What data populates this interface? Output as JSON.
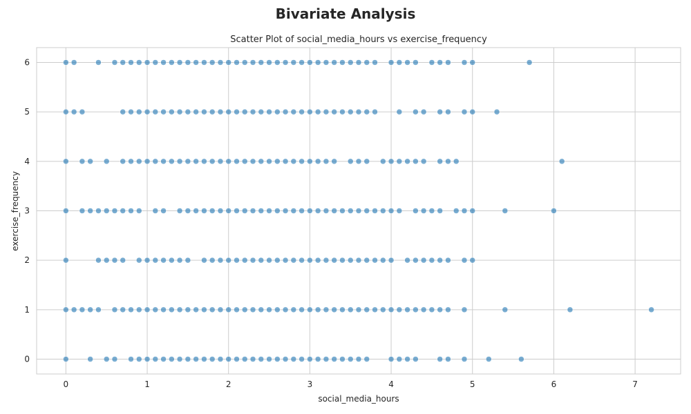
{
  "figure": {
    "suptitle": "Bivariate Analysis"
  },
  "chart_data": {
    "type": "scatter",
    "title": "Scatter Plot of social_media_hours vs exercise_frequency",
    "xlabel": "social_media_hours",
    "ylabel": "exercise_frequency",
    "xlim": [
      -0.36,
      7.56
    ],
    "ylim": [
      -0.3,
      6.3
    ],
    "xticks": [
      0,
      1,
      2,
      3,
      4,
      5,
      6,
      7
    ],
    "yticks": [
      0,
      1,
      2,
      3,
      4,
      5,
      6
    ],
    "grid": true,
    "marker_color": "#1f77b4",
    "marker_alpha": 0.6,
    "series": [
      {
        "points": [
          [
            0,
            6
          ],
          [
            0.1,
            6
          ],
          [
            0.4,
            6
          ],
          [
            0.6,
            6
          ],
          [
            0.7,
            6
          ],
          [
            0.8,
            6
          ],
          [
            0.9,
            6
          ],
          [
            1.0,
            6
          ],
          [
            1.1,
            6
          ],
          [
            1.2,
            6
          ],
          [
            1.3,
            6
          ],
          [
            1.4,
            6
          ],
          [
            1.5,
            6
          ],
          [
            1.6,
            6
          ],
          [
            1.7,
            6
          ],
          [
            1.8,
            6
          ],
          [
            1.9,
            6
          ],
          [
            2.0,
            6
          ],
          [
            2.1,
            6
          ],
          [
            2.2,
            6
          ],
          [
            2.3,
            6
          ],
          [
            2.4,
            6
          ],
          [
            2.5,
            6
          ],
          [
            2.6,
            6
          ],
          [
            2.7,
            6
          ],
          [
            2.8,
            6
          ],
          [
            2.9,
            6
          ],
          [
            3.0,
            6
          ],
          [
            3.1,
            6
          ],
          [
            3.2,
            6
          ],
          [
            3.3,
            6
          ],
          [
            3.4,
            6
          ],
          [
            3.5,
            6
          ],
          [
            3.6,
            6
          ],
          [
            3.7,
            6
          ],
          [
            3.8,
            6
          ],
          [
            4.0,
            6
          ],
          [
            4.1,
            6
          ],
          [
            4.2,
            6
          ],
          [
            4.3,
            6
          ],
          [
            4.5,
            6
          ],
          [
            4.6,
            6
          ],
          [
            4.7,
            6
          ],
          [
            4.9,
            6
          ],
          [
            5.0,
            6
          ],
          [
            5.7,
            6
          ],
          [
            0,
            5
          ],
          [
            0.1,
            5
          ],
          [
            0.2,
            5
          ],
          [
            0.7,
            5
          ],
          [
            0.8,
            5
          ],
          [
            0.9,
            5
          ],
          [
            1.0,
            5
          ],
          [
            1.1,
            5
          ],
          [
            1.2,
            5
          ],
          [
            1.3,
            5
          ],
          [
            1.4,
            5
          ],
          [
            1.5,
            5
          ],
          [
            1.6,
            5
          ],
          [
            1.7,
            5
          ],
          [
            1.8,
            5
          ],
          [
            1.9,
            5
          ],
          [
            2.0,
            5
          ],
          [
            2.1,
            5
          ],
          [
            2.2,
            5
          ],
          [
            2.3,
            5
          ],
          [
            2.4,
            5
          ],
          [
            2.5,
            5
          ],
          [
            2.6,
            5
          ],
          [
            2.7,
            5
          ],
          [
            2.8,
            5
          ],
          [
            2.9,
            5
          ],
          [
            3.0,
            5
          ],
          [
            3.1,
            5
          ],
          [
            3.2,
            5
          ],
          [
            3.3,
            5
          ],
          [
            3.4,
            5
          ],
          [
            3.5,
            5
          ],
          [
            3.6,
            5
          ],
          [
            3.7,
            5
          ],
          [
            3.8,
            5
          ],
          [
            4.1,
            5
          ],
          [
            4.3,
            5
          ],
          [
            4.4,
            5
          ],
          [
            4.6,
            5
          ],
          [
            4.7,
            5
          ],
          [
            4.9,
            5
          ],
          [
            5.0,
            5
          ],
          [
            5.3,
            5
          ],
          [
            0,
            4
          ],
          [
            0.2,
            4
          ],
          [
            0.3,
            4
          ],
          [
            0.5,
            4
          ],
          [
            0.7,
            4
          ],
          [
            0.8,
            4
          ],
          [
            0.9,
            4
          ],
          [
            1.0,
            4
          ],
          [
            1.1,
            4
          ],
          [
            1.2,
            4
          ],
          [
            1.3,
            4
          ],
          [
            1.4,
            4
          ],
          [
            1.5,
            4
          ],
          [
            1.6,
            4
          ],
          [
            1.7,
            4
          ],
          [
            1.8,
            4
          ],
          [
            1.9,
            4
          ],
          [
            2.0,
            4
          ],
          [
            2.1,
            4
          ],
          [
            2.2,
            4
          ],
          [
            2.3,
            4
          ],
          [
            2.4,
            4
          ],
          [
            2.5,
            4
          ],
          [
            2.6,
            4
          ],
          [
            2.7,
            4
          ],
          [
            2.8,
            4
          ],
          [
            2.9,
            4
          ],
          [
            3.0,
            4
          ],
          [
            3.1,
            4
          ],
          [
            3.2,
            4
          ],
          [
            3.3,
            4
          ],
          [
            3.5,
            4
          ],
          [
            3.6,
            4
          ],
          [
            3.7,
            4
          ],
          [
            3.9,
            4
          ],
          [
            4.0,
            4
          ],
          [
            4.1,
            4
          ],
          [
            4.2,
            4
          ],
          [
            4.3,
            4
          ],
          [
            4.4,
            4
          ],
          [
            4.6,
            4
          ],
          [
            4.7,
            4
          ],
          [
            4.8,
            4
          ],
          [
            6.1,
            4
          ],
          [
            0,
            3
          ],
          [
            0.2,
            3
          ],
          [
            0.3,
            3
          ],
          [
            0.4,
            3
          ],
          [
            0.5,
            3
          ],
          [
            0.6,
            3
          ],
          [
            0.7,
            3
          ],
          [
            0.8,
            3
          ],
          [
            0.9,
            3
          ],
          [
            1.1,
            3
          ],
          [
            1.2,
            3
          ],
          [
            1.4,
            3
          ],
          [
            1.5,
            3
          ],
          [
            1.6,
            3
          ],
          [
            1.7,
            3
          ],
          [
            1.8,
            3
          ],
          [
            1.9,
            3
          ],
          [
            2.0,
            3
          ],
          [
            2.1,
            3
          ],
          [
            2.2,
            3
          ],
          [
            2.3,
            3
          ],
          [
            2.4,
            3
          ],
          [
            2.5,
            3
          ],
          [
            2.6,
            3
          ],
          [
            2.7,
            3
          ],
          [
            2.8,
            3
          ],
          [
            2.9,
            3
          ],
          [
            3.0,
            3
          ],
          [
            3.1,
            3
          ],
          [
            3.2,
            3
          ],
          [
            3.3,
            3
          ],
          [
            3.4,
            3
          ],
          [
            3.5,
            3
          ],
          [
            3.6,
            3
          ],
          [
            3.7,
            3
          ],
          [
            3.8,
            3
          ],
          [
            3.9,
            3
          ],
          [
            4.0,
            3
          ],
          [
            4.1,
            3
          ],
          [
            4.3,
            3
          ],
          [
            4.4,
            3
          ],
          [
            4.5,
            3
          ],
          [
            4.6,
            3
          ],
          [
            4.8,
            3
          ],
          [
            4.9,
            3
          ],
          [
            5.0,
            3
          ],
          [
            5.4,
            3
          ],
          [
            6.0,
            3
          ],
          [
            0,
            2
          ],
          [
            0.4,
            2
          ],
          [
            0.5,
            2
          ],
          [
            0.6,
            2
          ],
          [
            0.7,
            2
          ],
          [
            0.9,
            2
          ],
          [
            1.0,
            2
          ],
          [
            1.1,
            2
          ],
          [
            1.2,
            2
          ],
          [
            1.3,
            2
          ],
          [
            1.4,
            2
          ],
          [
            1.5,
            2
          ],
          [
            1.7,
            2
          ],
          [
            1.8,
            2
          ],
          [
            1.9,
            2
          ],
          [
            2.0,
            2
          ],
          [
            2.1,
            2
          ],
          [
            2.2,
            2
          ],
          [
            2.3,
            2
          ],
          [
            2.4,
            2
          ],
          [
            2.5,
            2
          ],
          [
            2.6,
            2
          ],
          [
            2.7,
            2
          ],
          [
            2.8,
            2
          ],
          [
            2.9,
            2
          ],
          [
            3.0,
            2
          ],
          [
            3.1,
            2
          ],
          [
            3.2,
            2
          ],
          [
            3.3,
            2
          ],
          [
            3.4,
            2
          ],
          [
            3.5,
            2
          ],
          [
            3.6,
            2
          ],
          [
            3.7,
            2
          ],
          [
            3.8,
            2
          ],
          [
            3.9,
            2
          ],
          [
            4.0,
            2
          ],
          [
            4.2,
            2
          ],
          [
            4.3,
            2
          ],
          [
            4.4,
            2
          ],
          [
            4.5,
            2
          ],
          [
            4.6,
            2
          ],
          [
            4.7,
            2
          ],
          [
            4.9,
            2
          ],
          [
            5.0,
            2
          ],
          [
            0,
            1
          ],
          [
            0.1,
            1
          ],
          [
            0.2,
            1
          ],
          [
            0.3,
            1
          ],
          [
            0.4,
            1
          ],
          [
            0.6,
            1
          ],
          [
            0.7,
            1
          ],
          [
            0.8,
            1
          ],
          [
            0.9,
            1
          ],
          [
            1.0,
            1
          ],
          [
            1.1,
            1
          ],
          [
            1.2,
            1
          ],
          [
            1.3,
            1
          ],
          [
            1.4,
            1
          ],
          [
            1.5,
            1
          ],
          [
            1.6,
            1
          ],
          [
            1.7,
            1
          ],
          [
            1.8,
            1
          ],
          [
            1.9,
            1
          ],
          [
            2.0,
            1
          ],
          [
            2.1,
            1
          ],
          [
            2.2,
            1
          ],
          [
            2.3,
            1
          ],
          [
            2.4,
            1
          ],
          [
            2.5,
            1
          ],
          [
            2.6,
            1
          ],
          [
            2.7,
            1
          ],
          [
            2.8,
            1
          ],
          [
            2.9,
            1
          ],
          [
            3.0,
            1
          ],
          [
            3.1,
            1
          ],
          [
            3.2,
            1
          ],
          [
            3.3,
            1
          ],
          [
            3.4,
            1
          ],
          [
            3.5,
            1
          ],
          [
            3.6,
            1
          ],
          [
            3.7,
            1
          ],
          [
            3.8,
            1
          ],
          [
            3.9,
            1
          ],
          [
            4.0,
            1
          ],
          [
            4.1,
            1
          ],
          [
            4.2,
            1
          ],
          [
            4.3,
            1
          ],
          [
            4.4,
            1
          ],
          [
            4.5,
            1
          ],
          [
            4.6,
            1
          ],
          [
            4.7,
            1
          ],
          [
            4.9,
            1
          ],
          [
            5.4,
            1
          ],
          [
            6.2,
            1
          ],
          [
            7.2,
            1
          ],
          [
            0,
            0
          ],
          [
            0.3,
            0
          ],
          [
            0.5,
            0
          ],
          [
            0.6,
            0
          ],
          [
            0.8,
            0
          ],
          [
            0.9,
            0
          ],
          [
            1.0,
            0
          ],
          [
            1.1,
            0
          ],
          [
            1.2,
            0
          ],
          [
            1.3,
            0
          ],
          [
            1.4,
            0
          ],
          [
            1.5,
            0
          ],
          [
            1.6,
            0
          ],
          [
            1.7,
            0
          ],
          [
            1.8,
            0
          ],
          [
            1.9,
            0
          ],
          [
            2.0,
            0
          ],
          [
            2.1,
            0
          ],
          [
            2.2,
            0
          ],
          [
            2.3,
            0
          ],
          [
            2.4,
            0
          ],
          [
            2.5,
            0
          ],
          [
            2.6,
            0
          ],
          [
            2.7,
            0
          ],
          [
            2.8,
            0
          ],
          [
            2.9,
            0
          ],
          [
            3.0,
            0
          ],
          [
            3.1,
            0
          ],
          [
            3.2,
            0
          ],
          [
            3.3,
            0
          ],
          [
            3.4,
            0
          ],
          [
            3.5,
            0
          ],
          [
            3.6,
            0
          ],
          [
            3.7,
            0
          ],
          [
            4.0,
            0
          ],
          [
            4.1,
            0
          ],
          [
            4.2,
            0
          ],
          [
            4.3,
            0
          ],
          [
            4.6,
            0
          ],
          [
            4.7,
            0
          ],
          [
            4.9,
            0
          ],
          [
            5.2,
            0
          ],
          [
            5.6,
            0
          ]
        ]
      }
    ]
  }
}
